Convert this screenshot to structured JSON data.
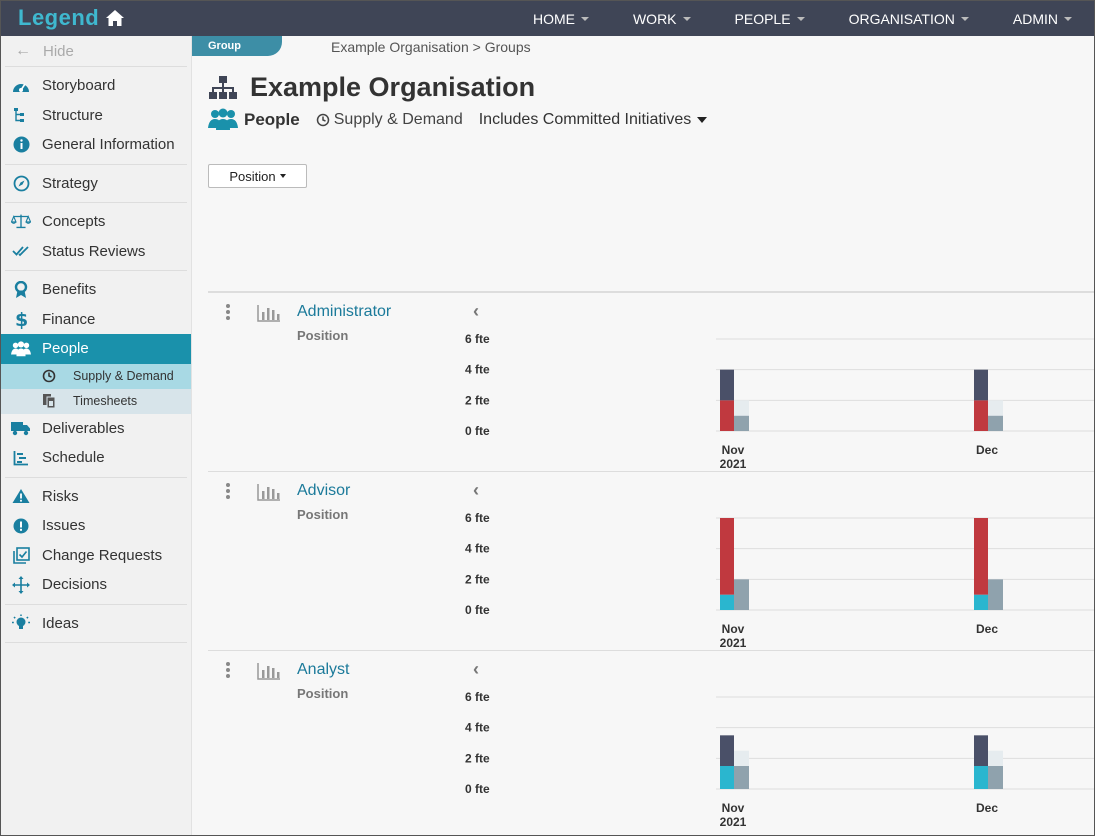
{
  "app": {
    "brand": "Legend",
    "nav": [
      "HOME",
      "WORK",
      "PEOPLE",
      "ORGANISATION",
      "ADMIN"
    ]
  },
  "sidebar": {
    "hide_label": "Hide",
    "groups": [
      [
        {
          "label": "Storyboard",
          "icon": "dashboard-icon"
        },
        {
          "label": "Structure",
          "icon": "structure-icon"
        },
        {
          "label": "General Information",
          "icon": "info-icon"
        }
      ],
      [
        {
          "label": "Strategy",
          "icon": "compass-icon"
        }
      ],
      [
        {
          "label": "Concepts",
          "icon": "scales-icon"
        },
        {
          "label": "Status Reviews",
          "icon": "double-check-icon"
        }
      ],
      [
        {
          "label": "Benefits",
          "icon": "ribbon-icon"
        },
        {
          "label": "Finance",
          "icon": "dollar-icon"
        },
        {
          "label": "People",
          "icon": "people-icon",
          "active": true
        },
        {
          "label": "Supply & Demand",
          "icon": "clock-icon",
          "sub": true,
          "selected": true
        },
        {
          "label": "Timesheets",
          "icon": "timesheet-icon",
          "sub": true
        },
        {
          "label": "Deliverables",
          "icon": "truck-icon"
        },
        {
          "label": "Schedule",
          "icon": "gantt-icon"
        }
      ],
      [
        {
          "label": "Risks",
          "icon": "warning-icon"
        },
        {
          "label": "Issues",
          "icon": "exclamation-icon"
        },
        {
          "label": "Change Requests",
          "icon": "change-request-icon"
        },
        {
          "label": "Decisions",
          "icon": "arrows-icon"
        }
      ],
      [
        {
          "label": "Ideas",
          "icon": "lightbulb-icon"
        }
      ]
    ]
  },
  "header": {
    "group_tab": "Group",
    "breadcrumb": "Example Organisation > Groups",
    "title": "Example Organisation",
    "people_label": "People",
    "supply_demand_label": "Supply & Demand",
    "includes_label": "Includes Committed Initiatives",
    "position_button": "Position"
  },
  "colors": {
    "dark": "#4a5068",
    "red": "#c0393f",
    "cyan": "#2ab6cf",
    "grey": "#8fa2ad",
    "light": "#e6ecef",
    "accent": "#1a91ab"
  },
  "chart_data": [
    {
      "type": "bar",
      "title": "Administrator",
      "subtitle": "Position",
      "ylim": [
        0,
        6
      ],
      "yticks": [
        "6 fte",
        "4 fte",
        "2 fte",
        "0 fte"
      ],
      "categories": [
        "Nov\n2021",
        "Dec"
      ],
      "demand": [
        {
          "red": 2,
          "cyan": 0,
          "dark": 2
        },
        {
          "red": 2,
          "cyan": 0,
          "dark": 2
        }
      ],
      "supply": [
        {
          "grey": 1,
          "light": 1
        },
        {
          "grey": 1,
          "light": 1
        }
      ]
    },
    {
      "type": "bar",
      "title": "Advisor",
      "subtitle": "Position",
      "ylim": [
        0,
        6
      ],
      "yticks": [
        "6 fte",
        "4 fte",
        "2 fte",
        "0 fte"
      ],
      "categories": [
        "Nov\n2021",
        "Dec"
      ],
      "demand": [
        {
          "red": 5,
          "cyan": 1,
          "dark": 0
        },
        {
          "red": 5,
          "cyan": 1,
          "dark": 0
        }
      ],
      "supply": [
        {
          "grey": 2,
          "light": 0
        },
        {
          "grey": 2,
          "light": 0
        }
      ]
    },
    {
      "type": "bar",
      "title": "Analyst",
      "subtitle": "Position",
      "ylim": [
        0,
        6
      ],
      "yticks": [
        "6 fte",
        "4 fte",
        "2 fte",
        "0 fte"
      ],
      "categories": [
        "Nov\n2021",
        "Dec"
      ],
      "demand": [
        {
          "red": 0,
          "cyan": 1.5,
          "dark": 2
        },
        {
          "red": 0,
          "cyan": 1.5,
          "dark": 2
        }
      ],
      "supply": [
        {
          "grey": 1.5,
          "light": 1
        },
        {
          "grey": 1.5,
          "light": 1
        }
      ]
    }
  ]
}
